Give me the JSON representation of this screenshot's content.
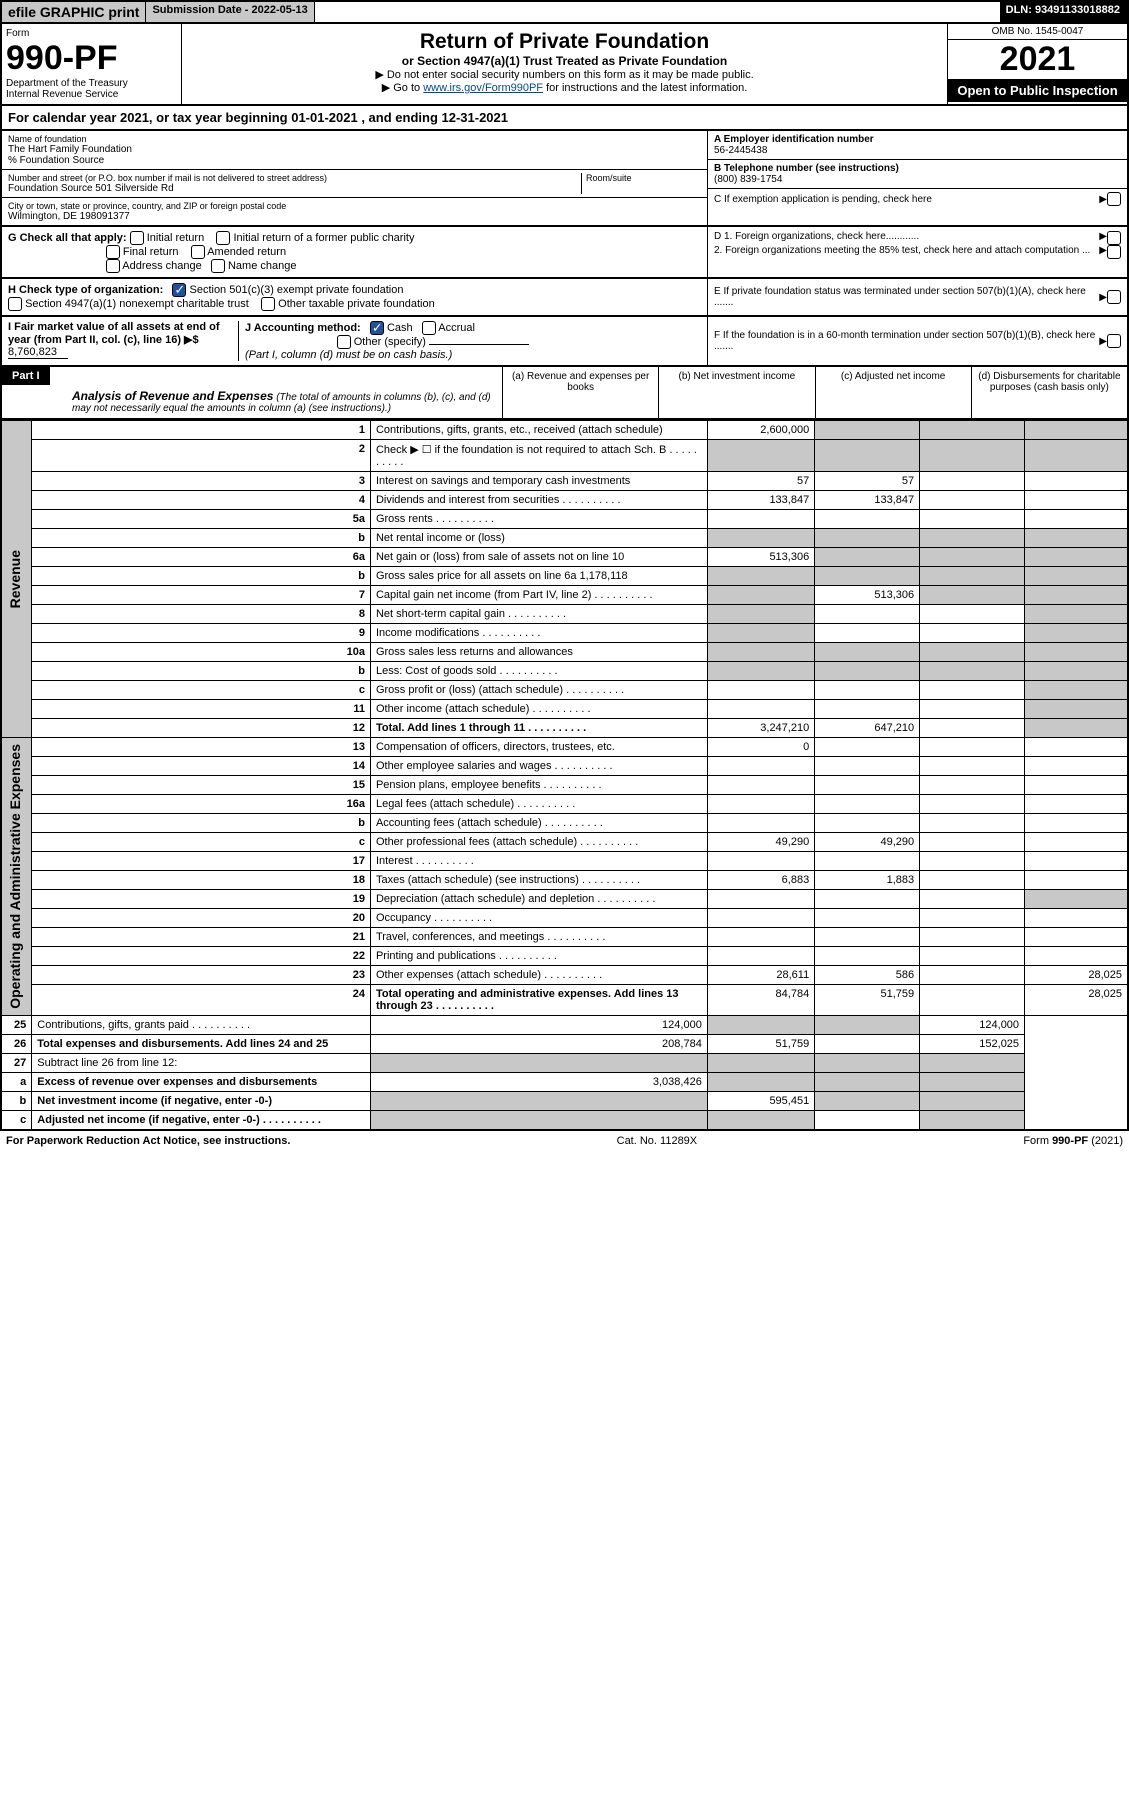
{
  "top": {
    "efile": "efile GRAPHIC print",
    "submission": "Submission Date - 2022-05-13",
    "dln": "DLN: 93491133018882"
  },
  "header": {
    "form_label": "Form",
    "form_num": "990-PF",
    "dept1": "Department of the Treasury",
    "dept2": "Internal Revenue Service",
    "title": "Return of Private Foundation",
    "subtitle": "or Section 4947(a)(1) Trust Treated as Private Foundation",
    "note1": "▶ Do not enter social security numbers on this form as it may be made public.",
    "note2_pre": "▶ Go to ",
    "note2_link": "www.irs.gov/Form990PF",
    "note2_post": " for instructions and the latest information.",
    "omb": "OMB No. 1545-0047",
    "year": "2021",
    "open": "Open to Public Inspection"
  },
  "cal": "For calendar year 2021, or tax year beginning 01-01-2021               , and ending 12-31-2021",
  "info": {
    "name_lbl": "Name of foundation",
    "name": "The Hart Family Foundation",
    "src": "% Foundation Source",
    "addr_lbl": "Number and street (or P.O. box number if mail is not delivered to street address)",
    "addr": "Foundation Source 501 Silverside Rd",
    "room_lbl": "Room/suite",
    "city_lbl": "City or town, state or province, country, and ZIP or foreign postal code",
    "city": "Wilmington, DE  198091377",
    "a_lbl": "A Employer identification number",
    "a": "56-2445438",
    "b_lbl": "B Telephone number (see instructions)",
    "b": "(800) 839-1754",
    "c": "C If exemption application is pending, check here",
    "d1": "D 1. Foreign organizations, check here............",
    "d2": "2. Foreign organizations meeting the 85% test, check here and attach computation ...",
    "e": "E  If private foundation status was terminated under section 507(b)(1)(A), check here .......",
    "f": "F  If the foundation is in a 60-month termination under section 507(b)(1)(B), check here ......."
  },
  "g": {
    "label": "G Check all that apply:",
    "o1": "Initial return",
    "o2": "Initial return of a former public charity",
    "o3": "Final return",
    "o4": "Amended return",
    "o5": "Address change",
    "o6": "Name change"
  },
  "h": {
    "label": "H Check type of organization:",
    "o1": "Section 501(c)(3) exempt private foundation",
    "o2": "Section 4947(a)(1) nonexempt charitable trust",
    "o3": "Other taxable private foundation"
  },
  "i": {
    "label": "I Fair market value of all assets at end of year (from Part II, col. (c), line 16) ▶$",
    "val": "8,760,823"
  },
  "j": {
    "label": "J Accounting method:",
    "o1": "Cash",
    "o2": "Accrual",
    "o3": "Other (specify)",
    "note": "(Part I, column (d) must be on cash basis.)"
  },
  "part1": {
    "hdr": "Part I",
    "title": "Analysis of Revenue and Expenses",
    "desc": "(The total of amounts in columns (b), (c), and (d) may not necessarily equal the amounts in column (a) (see instructions).)",
    "ca": "(a)   Revenue and expenses per books",
    "cb": "(b)   Net investment income",
    "cc": "(c)  Adjusted net income",
    "cd": "(d)  Disbursements for charitable purposes (cash basis only)"
  },
  "sides": {
    "rev": "Revenue",
    "exp": "Operating and Administrative Expenses"
  },
  "rows": [
    {
      "n": "1",
      "d": "Contributions, gifts, grants, etc., received (attach schedule)",
      "a": "2,600,000"
    },
    {
      "n": "2",
      "d": "Check ▶ ☐ if the foundation is not required to attach Sch. B",
      "dots": true
    },
    {
      "n": "3",
      "d": "Interest on savings and temporary cash investments",
      "a": "57",
      "b": "57"
    },
    {
      "n": "4",
      "d": "Dividends and interest from securities",
      "a": "133,847",
      "b": "133,847",
      "dots": true
    },
    {
      "n": "5a",
      "d": "Gross rents",
      "dots": true
    },
    {
      "n": "b",
      "d": "Net rental income or (loss)"
    },
    {
      "n": "6a",
      "d": "Net gain or (loss) from sale of assets not on line 10",
      "a": "513,306"
    },
    {
      "n": "b",
      "d": "Gross sales price for all assets on line 6a          1,178,118"
    },
    {
      "n": "7",
      "d": "Capital gain net income (from Part IV, line 2)",
      "b": "513,306",
      "dots": true
    },
    {
      "n": "8",
      "d": "Net short-term capital gain",
      "dots": true
    },
    {
      "n": "9",
      "d": "Income modifications",
      "dots": true
    },
    {
      "n": "10a",
      "d": "Gross sales less returns and allowances"
    },
    {
      "n": "b",
      "d": "Less: Cost of goods sold",
      "dots": true
    },
    {
      "n": "c",
      "d": "Gross profit or (loss) (attach schedule)",
      "dots": true
    },
    {
      "n": "11",
      "d": "Other income (attach schedule)",
      "dots": true
    },
    {
      "n": "12",
      "d": "Total. Add lines 1 through 11",
      "a": "3,247,210",
      "b": "647,210",
      "bold": true,
      "dots": true
    },
    {
      "n": "13",
      "d": "Compensation of officers, directors, trustees, etc.",
      "a": "0"
    },
    {
      "n": "14",
      "d": "Other employee salaries and wages",
      "dots": true
    },
    {
      "n": "15",
      "d": "Pension plans, employee benefits",
      "dots": true
    },
    {
      "n": "16a",
      "d": "Legal fees (attach schedule)",
      "dots": true
    },
    {
      "n": "b",
      "d": "Accounting fees (attach schedule)",
      "dots": true
    },
    {
      "n": "c",
      "d": "Other professional fees (attach schedule)",
      "a": "49,290",
      "b": "49,290",
      "dots": true
    },
    {
      "n": "17",
      "d": "Interest",
      "dots": true
    },
    {
      "n": "18",
      "d": "Taxes (attach schedule) (see instructions)",
      "a": "6,883",
      "b": "1,883",
      "dots": true
    },
    {
      "n": "19",
      "d": "Depreciation (attach schedule) and depletion",
      "dots": true
    },
    {
      "n": "20",
      "d": "Occupancy",
      "dots": true
    },
    {
      "n": "21",
      "d": "Travel, conferences, and meetings",
      "dots": true
    },
    {
      "n": "22",
      "d": "Printing and publications",
      "dots": true
    },
    {
      "n": "23",
      "d": "Other expenses (attach schedule)",
      "a": "28,611",
      "b": "586",
      "dd": "28,025",
      "dots": true
    },
    {
      "n": "24",
      "d": "Total operating and administrative expenses. Add lines 13 through 23",
      "a": "84,784",
      "b": "51,759",
      "dd": "28,025",
      "bold": true,
      "dots": true
    },
    {
      "n": "25",
      "d": "Contributions, gifts, grants paid",
      "a": "124,000",
      "dd": "124,000",
      "dots": true
    },
    {
      "n": "26",
      "d": "Total expenses and disbursements. Add lines 24 and 25",
      "a": "208,784",
      "b": "51,759",
      "dd": "152,025",
      "bold": true
    },
    {
      "n": "27",
      "d": "Subtract line 26 from line 12:"
    },
    {
      "n": "a",
      "d": "Excess of revenue over expenses and disbursements",
      "a": "3,038,426",
      "bold": true
    },
    {
      "n": "b",
      "d": "Net investment income (if negative, enter -0-)",
      "b": "595,451",
      "bold": true
    },
    {
      "n": "c",
      "d": "Adjusted net income (if negative, enter -0-)",
      "bold": true,
      "dots": true
    }
  ],
  "shade_map": {
    "1": [
      "b",
      "c",
      "d"
    ],
    "2": [
      "a",
      "b",
      "c",
      "d"
    ],
    "5b": [
      "a",
      "b",
      "c",
      "d"
    ],
    "6a": [
      "b",
      "c",
      "d"
    ],
    "6b": [
      "a",
      "b",
      "c",
      "d"
    ],
    "7": [
      "a",
      "c",
      "d"
    ],
    "8": [
      "a",
      "d"
    ],
    "9": [
      "a",
      "d"
    ],
    "10a": [
      "a",
      "b",
      "c",
      "d"
    ],
    "10b": [
      "a",
      "b",
      "c",
      "d"
    ],
    "10c": [
      "d"
    ],
    "11": [
      "d"
    ],
    "12": [
      "d"
    ],
    "19": [
      "d"
    ],
    "25": [
      "b",
      "c"
    ],
    "27": [
      "a",
      "b",
      "c",
      "d"
    ],
    "27a": [
      "b",
      "c",
      "d"
    ],
    "27b": [
      "a",
      "c",
      "d"
    ],
    "27c": [
      "a",
      "b",
      "d"
    ]
  },
  "footer": {
    "left": "For Paperwork Reduction Act Notice, see instructions.",
    "mid": "Cat. No. 11289X",
    "right": "Form 990-PF (2021)"
  }
}
